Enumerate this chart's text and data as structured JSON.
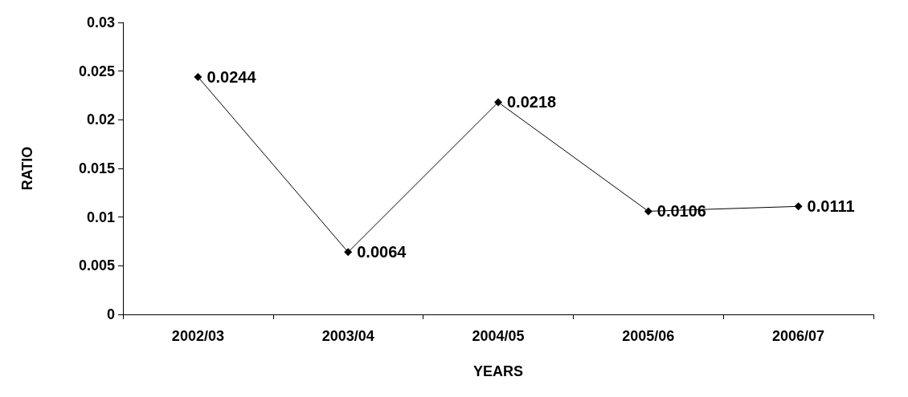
{
  "chart_data": {
    "type": "line",
    "xlabel": "YEARS",
    "ylabel": "RATIO",
    "categories": [
      "2002/03",
      "2003/04",
      "2004/05",
      "2005/06",
      "2006/07"
    ],
    "series": [
      {
        "color": "#000000",
        "values": [
          0.0244,
          0.0064,
          0.0218,
          0.0106,
          0.0111
        ]
      }
    ],
    "ylim": [
      0,
      0.03
    ],
    "yticks": [
      0,
      0.005,
      0.01,
      0.015,
      0.02,
      0.025,
      0.03
    ],
    "grid": false,
    "marker": "diamond",
    "line_style": "solid",
    "data_labels": true
  }
}
